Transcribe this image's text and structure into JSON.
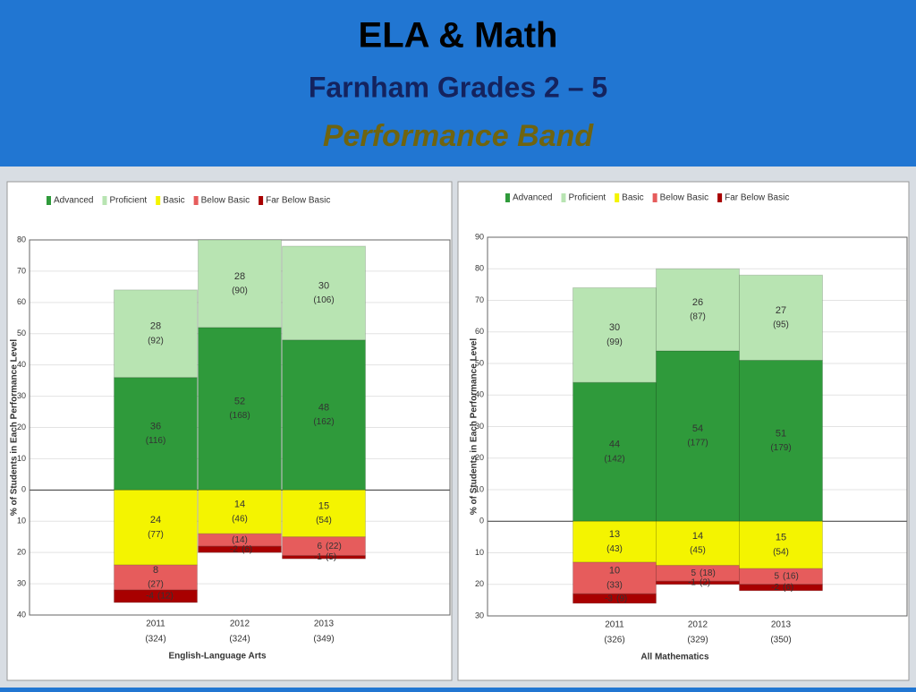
{
  "slide": {
    "title": "ELA & Math",
    "subtitle": "Farnham Grades 2 – 5",
    "heading": "Performance Band"
  },
  "chart_data": [
    {
      "type": "bar",
      "stacked": true,
      "x_label": "English-Language Arts",
      "y_label": "% of Students in Each Performance Level",
      "categories": [
        "2011",
        "2012",
        "2013"
      ],
      "category_totals": [
        "(324)",
        "(324)",
        "(349)"
      ],
      "ylim": [
        -40,
        80
      ],
      "yticks": [
        {
          "value": -40,
          "label": "40"
        },
        {
          "value": -30,
          "label": "30"
        },
        {
          "value": -20,
          "label": "20"
        },
        {
          "value": -10,
          "label": "10"
        },
        0,
        10,
        20,
        30,
        40,
        50,
        60,
        70,
        80
      ],
      "series": [
        {
          "name": "Advanced",
          "color": "#2f9a3b",
          "values": [
            36,
            52,
            48
          ],
          "counts": [
            "(116)",
            "(168)",
            "(162)"
          ]
        },
        {
          "name": "Proficient",
          "color": "#b8e4b2",
          "values": [
            28,
            28,
            30
          ],
          "counts": [
            "(92)",
            "(90)",
            "(106)"
          ]
        },
        {
          "name": "Basic",
          "color": "#f4f400",
          "values": [
            -24,
            -14,
            -15
          ],
          "value_labels": [
            "24",
            "14",
            "15"
          ],
          "counts": [
            "(77)",
            "(46)",
            "(54)"
          ]
        },
        {
          "name": "Below Basic",
          "color": "#e65c5c",
          "values": [
            -8,
            -4,
            -6
          ],
          "value_labels": [
            "8",
            null,
            "6"
          ],
          "counts": [
            "(27)",
            "(14)",
            "(22)"
          ]
        },
        {
          "name": "Far Below Basic",
          "color": "#a80000",
          "values": [
            -4,
            -2,
            -1
          ],
          "counts": [
            "(12)",
            "(6)",
            "(5)"
          ]
        }
      ]
    },
    {
      "type": "bar",
      "stacked": true,
      "x_label": "All Mathematics",
      "y_label": "% of Students in Each Performance Level",
      "categories": [
        "2011",
        "2012",
        "2013"
      ],
      "category_totals": [
        "(326)",
        "(329)",
        "(350)"
      ],
      "ylim": [
        -30,
        90
      ],
      "yticks": [
        {
          "value": -30,
          "label": "30"
        },
        {
          "value": -20,
          "label": "20"
        },
        {
          "value": -10,
          "label": "10"
        },
        0,
        10,
        20,
        30,
        40,
        50,
        60,
        70,
        80,
        90
      ],
      "series": [
        {
          "name": "Advanced",
          "color": "#2f9a3b",
          "values": [
            44,
            54,
            51
          ],
          "counts": [
            "(142)",
            "(177)",
            "(179)"
          ]
        },
        {
          "name": "Proficient",
          "color": "#b8e4b2",
          "values": [
            30,
            26,
            27
          ],
          "counts": [
            "(99)",
            "(87)",
            "(95)"
          ]
        },
        {
          "name": "Basic",
          "color": "#f4f400",
          "values": [
            -13,
            -14,
            -15
          ],
          "value_labels": [
            "13",
            "14",
            "15"
          ],
          "counts": [
            "(43)",
            "(45)",
            "(54)"
          ]
        },
        {
          "name": "Below Basic",
          "color": "#e65c5c",
          "values": [
            -10,
            -5,
            -5
          ],
          "value_labels": [
            "10",
            "5",
            "5"
          ],
          "counts": [
            "(33)",
            "(18)",
            "(16)"
          ]
        },
        {
          "name": "Far Below Basic",
          "color": "#a80000",
          "values": [
            -3,
            -1,
            -2
          ],
          "counts": [
            "(9)",
            "(2)",
            "(6)"
          ]
        }
      ]
    }
  ]
}
